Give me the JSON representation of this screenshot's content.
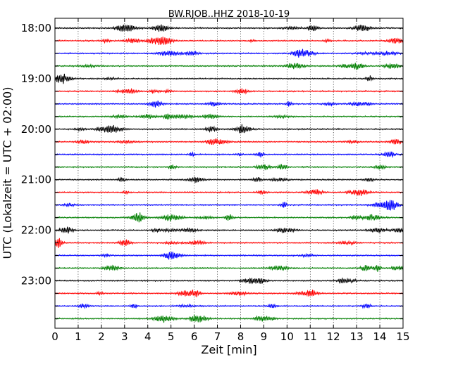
{
  "chart_data": {
    "type": "line",
    "title": "BW.RJOB..HHZ 2018-10-19",
    "xlabel": "Zeit  [min]",
    "ylabel": "UTC (Lokalzeit = UTC + 02:00)",
    "xlim": [
      0,
      15
    ],
    "x_ticks": [
      "0",
      "1",
      "2",
      "3",
      "4",
      "5",
      "6",
      "7",
      "8",
      "9",
      "10",
      "11",
      "12",
      "13",
      "14",
      "15"
    ],
    "y_ticks": [
      "18:00",
      "19:00",
      "20:00",
      "21:00",
      "22:00",
      "23:00"
    ],
    "grid": "vertical dotted at each minute",
    "trace_colors": [
      "#000000",
      "#ff0000",
      "#0000ff",
      "#007f00"
    ],
    "traces": [
      {
        "start": "18:00",
        "color": "#000000"
      },
      {
        "start": "18:15",
        "color": "#ff0000"
      },
      {
        "start": "18:30",
        "color": "#0000ff"
      },
      {
        "start": "18:45",
        "color": "#007f00"
      },
      {
        "start": "19:00",
        "color": "#000000"
      },
      {
        "start": "19:15",
        "color": "#ff0000"
      },
      {
        "start": "19:30",
        "color": "#0000ff"
      },
      {
        "start": "19:45",
        "color": "#007f00"
      },
      {
        "start": "20:00",
        "color": "#000000"
      },
      {
        "start": "20:15",
        "color": "#ff0000"
      },
      {
        "start": "20:30",
        "color": "#0000ff"
      },
      {
        "start": "20:45",
        "color": "#007f00"
      },
      {
        "start": "21:00",
        "color": "#000000"
      },
      {
        "start": "21:15",
        "color": "#ff0000"
      },
      {
        "start": "21:30",
        "color": "#0000ff"
      },
      {
        "start": "21:45",
        "color": "#007f00"
      },
      {
        "start": "22:00",
        "color": "#000000"
      },
      {
        "start": "22:15",
        "color": "#ff0000"
      },
      {
        "start": "22:30",
        "color": "#0000ff"
      },
      {
        "start": "22:45",
        "color": "#007f00"
      },
      {
        "start": "23:00",
        "color": "#000000"
      },
      {
        "start": "23:15",
        "color": "#ff0000"
      },
      {
        "start": "23:30",
        "color": "#0000ff"
      },
      {
        "start": "23:45",
        "color": "#007f00"
      }
    ]
  }
}
